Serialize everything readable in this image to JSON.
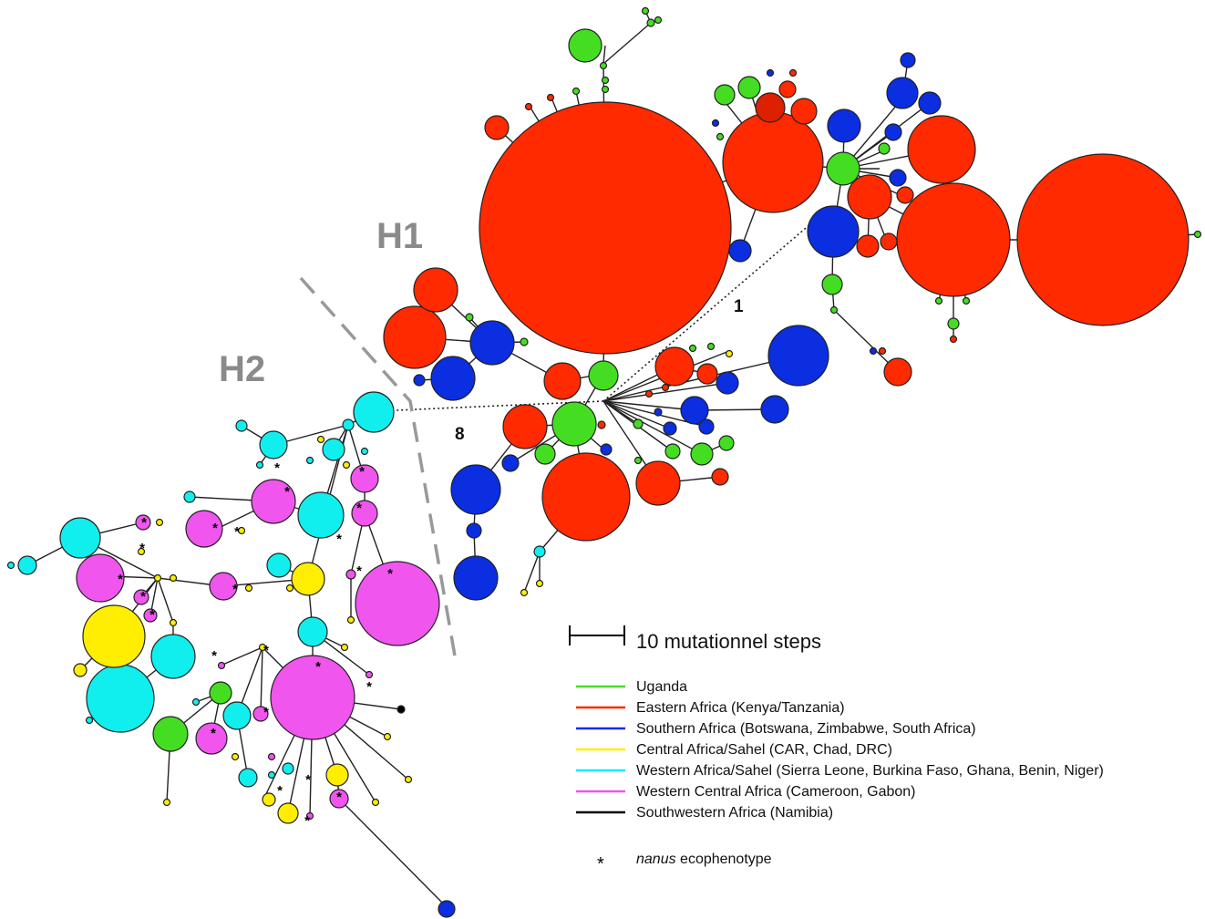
{
  "groups": {
    "h1": "H1",
    "h2": "H2"
  },
  "steps": {
    "first": "1",
    "second": "8"
  },
  "scale": {
    "label": "10 mutationnel steps"
  },
  "legend": {
    "items": [
      {
        "label": "Uganda",
        "color": "#44dd22"
      },
      {
        "label": "Eastern Africa (Kenya/Tanzania)",
        "color": "#ff2a00"
      },
      {
        "label": "Southern Africa (Botswana, Zimbabwe, South Africa)",
        "color": "#0a2ee0"
      },
      {
        "label": "Central Africa/Sahel (CAR, Chad, DRC)",
        "color": "#ffee00"
      },
      {
        "label": "Western Africa/Sahel (Sierra Leone, Burkina Faso, Ghana, Benin, Niger)",
        "color": "#11eeee"
      },
      {
        "label": "Western Central Africa (Cameroon, Gabon)",
        "color": "#f055ee"
      },
      {
        "label": "Southwestern Africa (Namibia)",
        "color": "#000000"
      }
    ],
    "marker_symbol": "*",
    "marker_italic": "nanus",
    "marker_text": " ecophenotype"
  }
}
